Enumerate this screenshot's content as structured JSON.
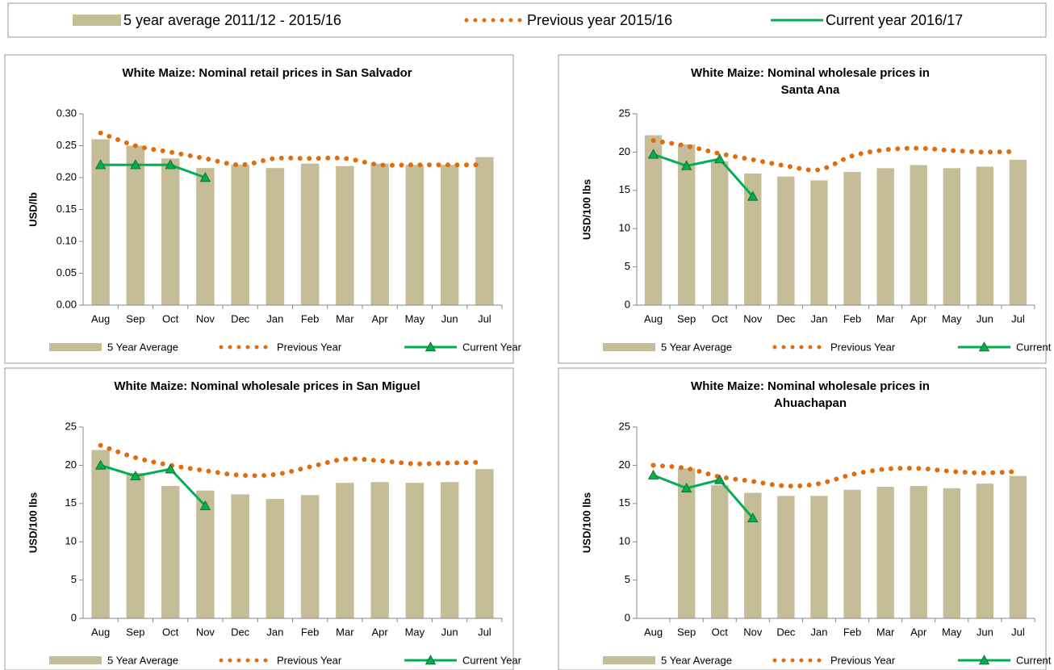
{
  "legend": [
    {
      "label": "5 year average 2011/12 - 2015/16",
      "color": "#c4bd97",
      "kind": "bar"
    },
    {
      "label": "Previous year 2015/16",
      "color": "#e36c0a",
      "kind": "dotted"
    },
    {
      "label": "Current year 2016/17",
      "color": "#00b050",
      "kind": "line"
    }
  ],
  "chart_data": [
    {
      "type": "combo",
      "title": [
        "White Maize: Nominal retail prices in San Salvador"
      ],
      "y_label": "USD/lb",
      "categories": [
        "Aug",
        "Sep",
        "Oct",
        "Nov",
        "Dec",
        "Jan",
        "Feb",
        "Mar",
        "Apr",
        "May",
        "Jun",
        "Jul"
      ],
      "ylim": [
        0,
        0.3
      ],
      "yticks": [
        {
          "value": 0,
          "label": "0.00"
        },
        {
          "value": 0.05,
          "label": "0.05"
        },
        {
          "value": 0.1,
          "label": "0.10"
        },
        {
          "value": 0.15,
          "label": "0.15"
        },
        {
          "value": 0.2,
          "label": "0.20"
        },
        {
          "value": 0.25,
          "label": "0.25"
        },
        {
          "value": 0.3,
          "label": "0.30"
        }
      ],
      "grid": false,
      "series": [
        {
          "name": "5 Year Average",
          "kind": "bar",
          "color": "#c4bd97",
          "values": [
            0.26,
            0.25,
            0.23,
            0.215,
            0.22,
            0.215,
            0.222,
            0.218,
            0.222,
            0.22,
            0.22,
            0.232
          ]
        },
        {
          "name": "Previous Year",
          "kind": "dotted",
          "color": "#e36c0a",
          "values": [
            0.27,
            0.25,
            0.24,
            0.23,
            0.22,
            0.23,
            0.23,
            0.23,
            0.22,
            0.22,
            0.22,
            0.22
          ]
        },
        {
          "name": "Current Year",
          "kind": "line",
          "color": "#00b050",
          "values": [
            0.22,
            0.22,
            0.22,
            0.2,
            null,
            null,
            null,
            null,
            null,
            null,
            null,
            null
          ]
        }
      ]
    },
    {
      "type": "combo",
      "title": [
        "White Maize: Nominal wholesale prices in",
        "Santa Ana"
      ],
      "y_label": "USD/100 lbs",
      "categories": [
        "Aug",
        "Sep",
        "Oct",
        "Nov",
        "Dec",
        "Jan",
        "Feb",
        "Mar",
        "Apr",
        "May",
        "Jun",
        "Jul"
      ],
      "ylim": [
        0,
        25
      ],
      "yticks": [
        0,
        5,
        10,
        15,
        20,
        25
      ],
      "grid": false,
      "series": [
        {
          "name": "5 Year Average",
          "kind": "bar",
          "color": "#c4bd97",
          "values": [
            22.2,
            21,
            18.8,
            17.2,
            16.8,
            16.3,
            17.4,
            17.9,
            18.3,
            17.9,
            18.1,
            19
          ]
        },
        {
          "name": "Previous Year",
          "kind": "dotted",
          "color": "#e36c0a",
          "values": [
            21.5,
            20.8,
            19.8,
            19,
            18.2,
            17.7,
            19.5,
            20.3,
            20.5,
            20.2,
            20,
            20.1
          ]
        },
        {
          "name": "Current Year",
          "kind": "line",
          "color": "#00b050",
          "values": [
            19.7,
            18.2,
            19.1,
            14.2,
            null,
            null,
            null,
            null,
            null,
            null,
            null,
            null
          ]
        }
      ]
    },
    {
      "type": "combo",
      "title": [
        "White Maize: Nominal wholesale prices in San Miguel"
      ],
      "y_label": "USD/100 lbs",
      "categories": [
        "Aug",
        "Sep",
        "Oct",
        "Nov",
        "Dec",
        "Jan",
        "Feb",
        "Mar",
        "Apr",
        "May",
        "Jun",
        "Jul"
      ],
      "ylim": [
        0,
        25
      ],
      "yticks": [
        0,
        5,
        10,
        15,
        20,
        25
      ],
      "grid": false,
      "series": [
        {
          "name": "5 Year Average",
          "kind": "bar",
          "color": "#c4bd97",
          "values": [
            22,
            19,
            17.3,
            16.7,
            16.2,
            15.6,
            16.1,
            17.7,
            17.8,
            17.7,
            17.8,
            19.5
          ]
        },
        {
          "name": "Previous Year",
          "kind": "dotted",
          "color": "#e36c0a",
          "values": [
            22.6,
            21,
            20,
            19.3,
            18.7,
            18.8,
            19.8,
            20.8,
            20.6,
            20.2,
            20.3,
            20.4
          ]
        },
        {
          "name": "Current Year",
          "kind": "line",
          "color": "#00b050",
          "values": [
            20,
            18.6,
            19.5,
            14.7,
            null,
            null,
            null,
            null,
            null,
            null,
            null,
            null
          ]
        }
      ]
    },
    {
      "type": "combo",
      "title": [
        "White Maize: Nominal wholesale prices in",
        "Ahuachapan"
      ],
      "y_label": "USD/100 lbs",
      "categories": [
        "Aug",
        "Sep",
        "Oct",
        "Nov",
        "Dec",
        "Jan",
        "Feb",
        "Mar",
        "Apr",
        "May",
        "Jun",
        "Jul"
      ],
      "ylim": [
        0,
        25
      ],
      "yticks": [
        0,
        5,
        10,
        15,
        20,
        25
      ],
      "grid": false,
      "series": [
        {
          "name": "5 Year Average",
          "kind": "bar",
          "color": "#c4bd97",
          "values": [
            null,
            19.6,
            17.4,
            16.4,
            16,
            16,
            16.8,
            17.2,
            17.3,
            17,
            17.6,
            18.6
          ]
        },
        {
          "name": "Previous Year",
          "kind": "dotted",
          "color": "#e36c0a",
          "values": [
            20,
            19.6,
            18.5,
            17.9,
            17.3,
            17.6,
            18.8,
            19.5,
            19.6,
            19.2,
            19,
            19.2
          ]
        },
        {
          "name": "Current Year",
          "kind": "line",
          "color": "#00b050",
          "values": [
            18.7,
            17,
            18.1,
            13.1,
            null,
            null,
            null,
            null,
            null,
            null,
            null,
            null
          ]
        }
      ]
    }
  ]
}
